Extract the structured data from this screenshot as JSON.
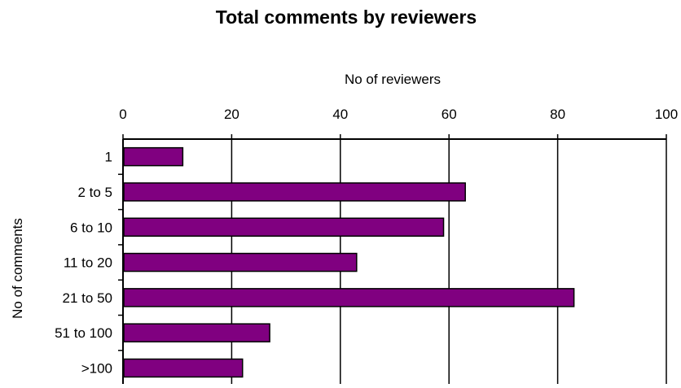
{
  "chart_data": {
    "type": "bar",
    "orientation": "horizontal",
    "title": "Total comments by reviewers",
    "xlabel": "No of reviewers",
    "ylabel": "No of comments",
    "x_axis_position": "top",
    "xlim": [
      0,
      100
    ],
    "xticks": [
      0,
      20,
      40,
      60,
      80,
      100
    ],
    "grid": true,
    "categories": [
      "1",
      "2 to 5",
      "6 to 10",
      "11 to 20",
      "21 to 50",
      "51 to 100",
      ">100"
    ],
    "values": [
      11,
      63,
      59,
      43,
      83,
      27,
      22
    ],
    "bar_color": "#800080"
  }
}
